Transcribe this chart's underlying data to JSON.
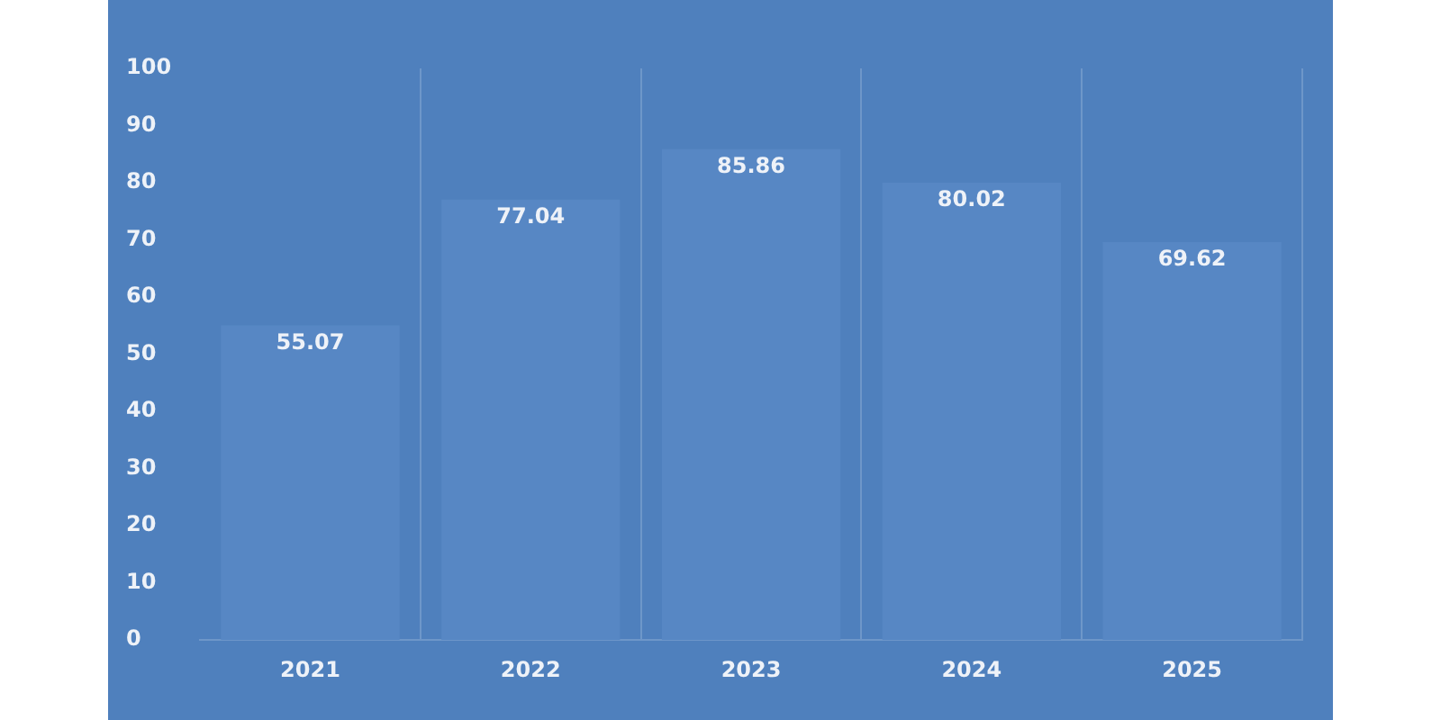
{
  "chart_data": {
    "type": "bar",
    "categories": [
      "2021",
      "2022",
      "2023",
      "2024",
      "2025"
    ],
    "values": [
      55.07,
      77.04,
      85.86,
      80.02,
      69.62
    ],
    "color": "#5787c4",
    "ylim": [
      0,
      100
    ],
    "yticks": [
      0,
      10,
      20,
      30,
      40,
      50,
      60,
      70,
      80,
      90,
      100
    ],
    "grid": "x",
    "data_labels": true,
    "legend": false
  }
}
